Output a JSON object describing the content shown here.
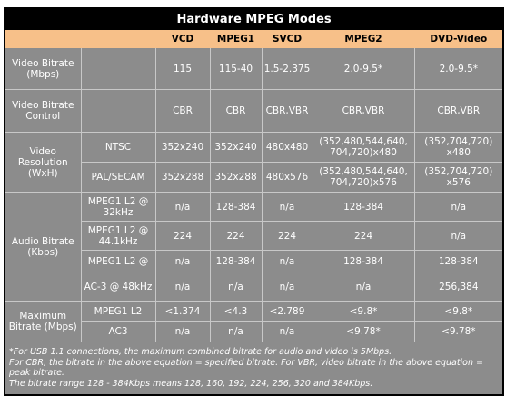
{
  "header": {
    "title": "Hardware MPEG Modes"
  },
  "table": {
    "columns": [
      "VCD",
      "MPEG1",
      "SVCD",
      "MPEG2",
      "DVD-Video"
    ],
    "groups": [
      {
        "label": "Video Bitrate (Mbps)",
        "rows": [
          {
            "cells": [
              "115",
              "115-40",
              "1.5-2.375",
              "2.0-9.5*",
              "2.0-9.5*"
            ]
          }
        ]
      },
      {
        "label": "Video Bitrate Control",
        "rows": [
          {
            "cells": [
              "CBR",
              "CBR",
              "CBR,VBR",
              "CBR,VBR",
              "CBR,VBR"
            ]
          }
        ]
      },
      {
        "label": "Video Resolution (WxH)",
        "rows": [
          {
            "sub": "NTSC",
            "cells": [
              "352x240",
              "352x240",
              "480x480",
              "(352,480,544,640, 704,720)x480",
              "(352,704,720) x480"
            ]
          },
          {
            "sub": "PAL/SECAM",
            "cells": [
              "352x288",
              "352x288",
              "480x576",
              "(352,480,544,640, 704,720)x576",
              "(352,704,720) x576"
            ]
          }
        ]
      },
      {
        "label": "Audio Bitrate (Kbps)",
        "rows": [
          {
            "sub": "MPEG1 L2 @ 32kHz",
            "cells": [
              "n/a",
              "128-384",
              "n/a",
              "128-384",
              "n/a"
            ]
          },
          {
            "sub": "MPEG1 L2 @ 44.1kHz",
            "cells": [
              "224",
              "224",
              "224",
              "224",
              "n/a"
            ]
          },
          {
            "sub": "MPEG1 L2 @",
            "cells": [
              "n/a",
              "128-384",
              "n/a",
              "128-384",
              "128-384"
            ]
          },
          {
            "sub": "AC-3 @ 48kHz",
            "cells": [
              "n/a",
              "n/a",
              "n/a",
              "n/a",
              "256,384"
            ]
          }
        ]
      },
      {
        "label": "Maximum Bitrate (Mbps)",
        "rows": [
          {
            "sub": "MPEG1 L2",
            "cells": [
              "<1.374",
              "<4.3",
              "<2.789",
              "<9.8*",
              "<9.8*"
            ]
          },
          {
            "sub": "AC3",
            "cells": [
              "n/a",
              "n/a",
              "n/a",
              "<9.78*",
              "<9.78*"
            ]
          }
        ]
      }
    ]
  },
  "footnotes": [
    "*For USB 1.1 connections, the maximum combined bitrate for audio and video is 5Mbps.",
    "For CBR, the bitrate in the above equation = specified bitrate. For VBR, video bitrate in the above equation = peak bitrate.",
    "The bitrate range 128 - 384Kbps means 128, 160, 192, 224, 256, 320 and 384Kbps."
  ]
}
